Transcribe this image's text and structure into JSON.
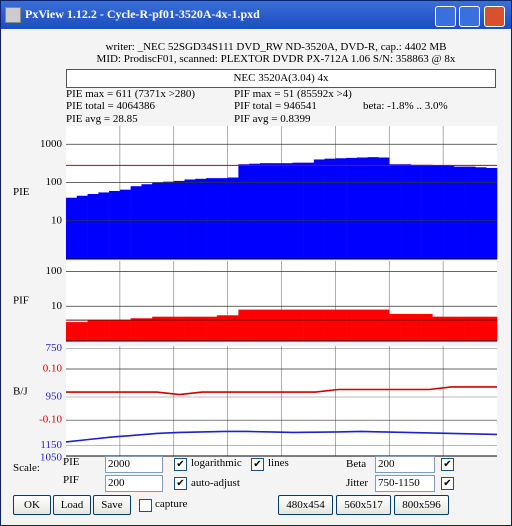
{
  "window": {
    "title": "PxView 1.12.2  -  Cycle-R-pf01-3520A-4x-1.pxd"
  },
  "info": {
    "writer": "writer: _NEC 52SGD34S111 DVD_RW ND-3520A, DVD-R, cap.: 4402 MB",
    "mid": "MID: ProdiscF01, scanned: PLEXTOR DVDR PX-712A 1.06 S/N: 358863 @ 8x",
    "label": "NEC 3520A(3.04) 4x"
  },
  "stats": {
    "pie_max": "PIE max = 611 (7371x >280)",
    "pie_total": "PIE total = 4064386",
    "pie_avg": "PIE avg = 28.85",
    "pif_max": "PIF max = 51 (85592x >4)",
    "pif_total": "PIF total = 946541",
    "pif_avg": "PIF avg = 0.8399",
    "beta": "beta: -1.8% .. 3.0%"
  },
  "pie_chart": {
    "type": "bar",
    "y_label": "PIE",
    "log_scale": true,
    "ylim": [
      1,
      3000
    ],
    "yticks": [
      10,
      100,
      1000
    ],
    "threshold": 280,
    "color": "#0000ff",
    "threshold_color": "#c00000",
    "values": [
      40,
      45,
      50,
      55,
      60,
      65,
      80,
      90,
      100,
      105,
      110,
      120,
      125,
      130,
      130,
      135,
      300,
      310,
      320,
      320,
      320,
      330,
      330,
      400,
      420,
      430,
      440,
      450,
      460,
      450,
      300,
      300,
      290,
      290,
      280,
      280,
      260,
      260,
      250,
      240
    ]
  },
  "pif_chart": {
    "type": "bar",
    "y_label": "PIF",
    "log_scale": true,
    "ylim": [
      1,
      200
    ],
    "yticks": [
      10,
      100
    ],
    "threshold": 4,
    "color": "#ff0000",
    "threshold_color": "#800000",
    "values": [
      3.5,
      3.5,
      4,
      4,
      4,
      4,
      4.5,
      4.5,
      5,
      5,
      5,
      5,
      5,
      5,
      5.5,
      5.5,
      8,
      8,
      8,
      8,
      8,
      8,
      8,
      8,
      8,
      8,
      8,
      8,
      8,
      8,
      6,
      6,
      6,
      6,
      5,
      5,
      5,
      5,
      5,
      5
    ]
  },
  "bj_chart": {
    "type": "line",
    "y_label": "B/J",
    "ylim": [
      -0.24,
      0.19
    ],
    "yticks": [
      {
        "value": 0.1,
        "label": "0.10"
      },
      {
        "value": -0.1,
        "label": "-0.10"
      }
    ],
    "y2lim": [
      1193,
      740
    ],
    "y2ticks": [
      750,
      950,
      1150
    ],
    "clipped_label": "1050",
    "series": [
      {
        "name": "beta",
        "color": "#d00000",
        "values": [
          0.01,
          0.01,
          0.01,
          0.01,
          0.01,
          0.0,
          0.01,
          0.01,
          0.01,
          0.01,
          0.01,
          0.01,
          0.02,
          0.02,
          0.02,
          0.02,
          0.02,
          0.03,
          0.03,
          0.03
        ]
      },
      {
        "name": "jitter",
        "color": "#2020d0",
        "axis": "y2",
        "values": [
          1135,
          1125,
          1115,
          1108,
          1100,
          1096,
          1094,
          1092,
          1092,
          1094,
          1096,
          1095,
          1094,
          1092,
          1094,
          1096,
          1098,
          1100,
          1102,
          1104
        ]
      }
    ]
  },
  "controls": {
    "scale": "Scale:",
    "pie": "PIE",
    "pie_value": "2000",
    "logarithmic": "logarithmic",
    "lines": "lines",
    "beta": "Beta",
    "beta_value": "200",
    "pif": "PIF",
    "pif_value": "200",
    "auto_adjust": "auto-adjust",
    "jitter": "Jitter",
    "jitter_value": "750-1150",
    "ok": "OK",
    "load": "Load",
    "save": "Save",
    "capture": "capture",
    "size1": "480x454",
    "size2": "560x517",
    "size3": "800x596"
  }
}
